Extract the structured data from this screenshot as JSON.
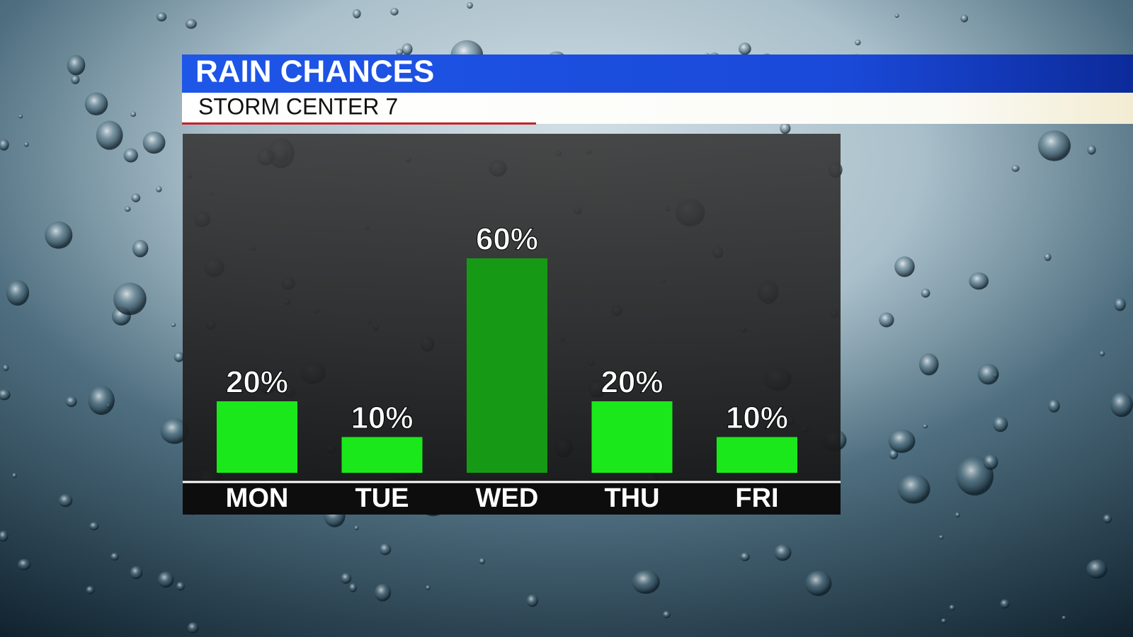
{
  "chart_data": {
    "type": "bar",
    "title": "RAIN CHANCES",
    "subtitle": "STORM CENTER 7",
    "categories": [
      "MON",
      "TUE",
      "WED",
      "THU",
      "FRI"
    ],
    "values": [
      20,
      10,
      60,
      20,
      10
    ],
    "value_labels": [
      "20%",
      "10%",
      "60%",
      "20%",
      "10%"
    ],
    "colors": [
      "#1be81b",
      "#1be81b",
      "#169a16",
      "#1be81b",
      "#1be81b"
    ]
  }
}
